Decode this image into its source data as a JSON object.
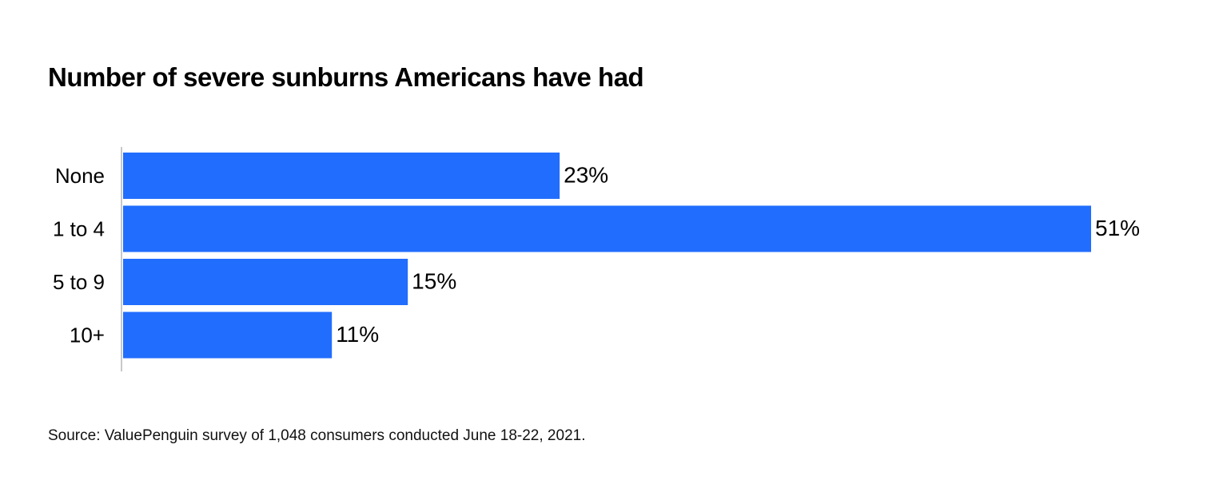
{
  "chart_data": {
    "type": "bar",
    "orientation": "horizontal",
    "title": "Number of severe sunburns Americans have had",
    "categories": [
      "None",
      "1 to 4",
      "5 to 9",
      "10+"
    ],
    "values": [
      23,
      51,
      15,
      11
    ],
    "value_labels": [
      "23%",
      "51%",
      "15%",
      "11%"
    ],
    "unit": "%",
    "xlabel": "",
    "ylabel": "",
    "xlim": [
      0,
      51
    ],
    "grid": false,
    "legend": "none",
    "bar_color": "#216DFD",
    "axis_color": "#C8C8C8",
    "source": "Source: ValuePenguin survey of 1,048 consumers conducted June 18-22, 2021."
  }
}
